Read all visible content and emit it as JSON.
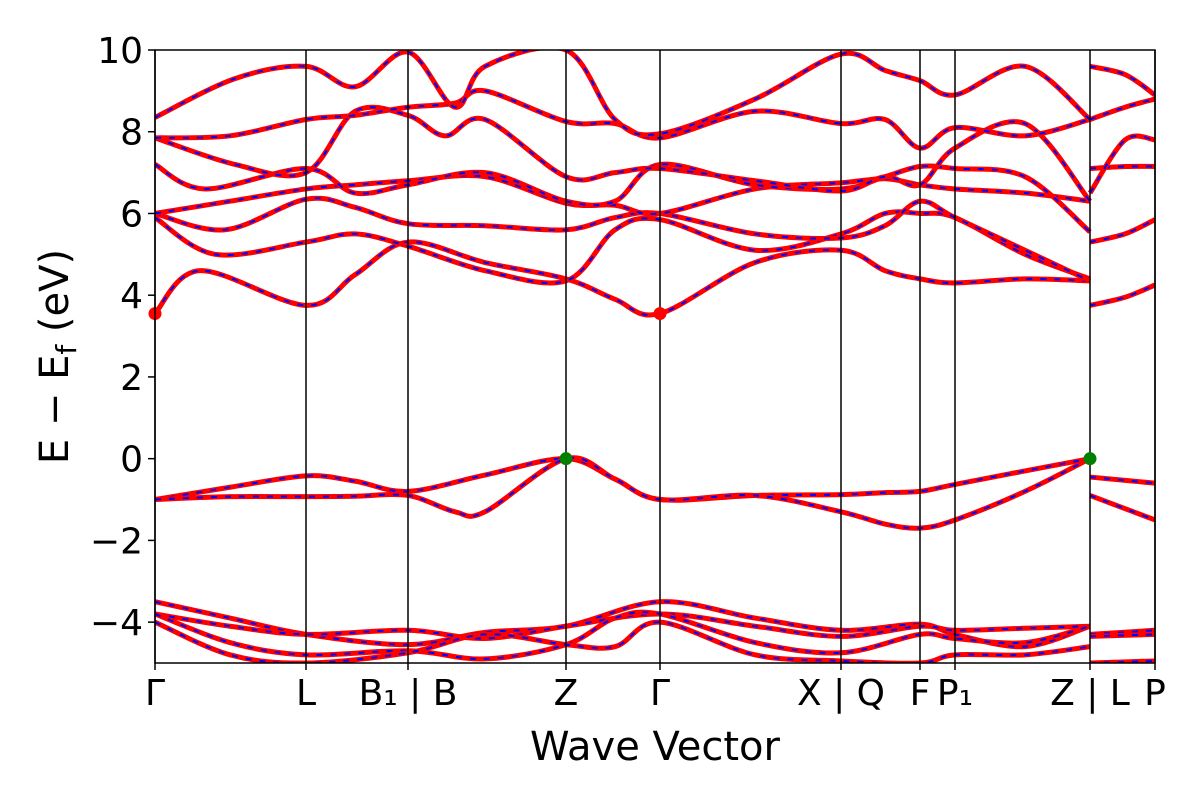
{
  "chart_data": {
    "type": "line",
    "title": "",
    "xlabel": "Wave Vector",
    "ylabel": "E − E_f (eV)",
    "ylabel_main": "E − E",
    "ylabel_sub": "f",
    "ylabel_unit": " (eV)",
    "ylim": [
      -5,
      10
    ],
    "yticks": [
      -4,
      -2,
      0,
      2,
      4,
      6,
      8,
      10
    ],
    "ytick_labels": [
      "−4",
      "−2",
      "0",
      "2",
      "4",
      "6",
      "8",
      "10"
    ],
    "xlim": [
      0,
      1
    ],
    "kpath_ticks": [
      {
        "x": 0.0,
        "label": "Γ"
      },
      {
        "x": 0.151,
        "label": "L"
      },
      {
        "x": 0.253,
        "label": "B₁ | B"
      },
      {
        "x": 0.411,
        "label": "Z"
      },
      {
        "x": 0.505,
        "label": "Γ"
      },
      {
        "x": 0.686,
        "label": "X | Q"
      },
      {
        "x": 0.765,
        "label": "F"
      },
      {
        "x": 0.8,
        "label": "P₁"
      },
      {
        "x": 0.935,
        "label": "Z | L"
      },
      {
        "x": 1.0,
        "label": "P"
      }
    ],
    "grid": false,
    "line_style": {
      "color": "#ff0000",
      "overlay_color": "#0000ff",
      "overlay_dash": "dashed"
    },
    "series": [
      {
        "x": [
          0,
          0.075,
          0.151,
          0.2,
          0.253,
          0.33,
          0.411,
          0.46,
          0.505,
          0.6,
          0.686,
          0.73,
          0.765,
          0.8,
          0.87,
          0.935
        ],
        "values": [
          -1.0,
          -0.7,
          -0.42,
          -0.55,
          -0.8,
          -0.4,
          0.0,
          -0.5,
          -1.0,
          -0.9,
          -0.88,
          -0.83,
          -0.8,
          -0.63,
          -0.3,
          0.0
        ]
      },
      {
        "x": [
          0,
          0.075,
          0.151,
          0.2,
          0.253,
          0.3,
          0.33,
          0.411,
          0.46,
          0.505,
          0.6,
          0.686,
          0.73,
          0.765,
          0.8,
          0.87,
          0.935
        ],
        "values": [
          -1.0,
          -0.93,
          -0.93,
          -0.92,
          -0.9,
          -1.3,
          -1.3,
          0.0,
          -0.5,
          -1.0,
          -0.9,
          -1.3,
          -1.6,
          -1.7,
          -1.5,
          -0.8,
          0.0
        ]
      },
      {
        "x": [
          0.935,
          1.0
        ],
        "values": [
          -0.45,
          -0.6
        ]
      },
      {
        "x": [
          0.935,
          1.0
        ],
        "values": [
          -0.9,
          -1.5
        ]
      },
      {
        "x": [
          0,
          0.045,
          0.151,
          0.2,
          0.253,
          0.33,
          0.411,
          0.46,
          0.505,
          0.6,
          0.686,
          0.73,
          0.765,
          0.8,
          0.87,
          0.935
        ],
        "values": [
          3.55,
          4.6,
          3.75,
          4.5,
          5.3,
          4.8,
          4.4,
          3.9,
          3.55,
          4.8,
          5.1,
          4.6,
          4.4,
          4.3,
          4.4,
          4.35
        ]
      },
      {
        "x": [
          0,
          0.06,
          0.151,
          0.2,
          0.253,
          0.33,
          0.411,
          0.46,
          0.505,
          0.6,
          0.686,
          0.73,
          0.765,
          0.8,
          0.87,
          0.935
        ],
        "values": [
          5.9,
          5.0,
          5.3,
          5.5,
          5.2,
          4.6,
          4.35,
          5.6,
          5.85,
          5.1,
          5.5,
          6.0,
          6.0,
          5.9,
          5.0,
          4.4
        ]
      },
      {
        "x": [
          0,
          0.07,
          0.151,
          0.2,
          0.253,
          0.33,
          0.411,
          0.46,
          0.505,
          0.6,
          0.686,
          0.73,
          0.765,
          0.8,
          0.87,
          0.935
        ],
        "values": [
          6.0,
          5.6,
          6.35,
          6.15,
          5.75,
          5.7,
          5.6,
          5.9,
          6.0,
          5.5,
          5.4,
          5.7,
          6.3,
          5.9,
          5.1,
          4.35
        ]
      },
      {
        "x": [
          0,
          0.075,
          0.151,
          0.2,
          0.253,
          0.33,
          0.411,
          0.46,
          0.505,
          0.6,
          0.686,
          0.73,
          0.765,
          0.8,
          0.87,
          0.935
        ],
        "values": [
          6.0,
          6.3,
          6.6,
          6.7,
          6.8,
          6.9,
          6.25,
          6.2,
          6.0,
          6.6,
          6.75,
          6.85,
          6.7,
          6.6,
          6.5,
          6.3
        ]
      },
      {
        "x": [
          0,
          0.05,
          0.151,
          0.2,
          0.253,
          0.33,
          0.411,
          0.46,
          0.505,
          0.6,
          0.686,
          0.73,
          0.765,
          0.8,
          0.87,
          0.935
        ],
        "values": [
          7.2,
          6.6,
          7.1,
          6.5,
          6.7,
          7.0,
          6.3,
          6.3,
          7.2,
          6.7,
          6.6,
          6.9,
          7.15,
          7.1,
          6.9,
          5.55
        ]
      },
      {
        "x": [
          0,
          0.08,
          0.151,
          0.2,
          0.253,
          0.29,
          0.33,
          0.411,
          0.46,
          0.505,
          0.6,
          0.686,
          0.73,
          0.765,
          0.8,
          0.87,
          0.935
        ],
        "values": [
          7.85,
          7.2,
          7.0,
          8.5,
          8.4,
          7.9,
          8.3,
          6.9,
          7.0,
          7.1,
          6.8,
          6.55,
          6.9,
          6.7,
          7.6,
          8.2,
          6.3
        ]
      },
      {
        "x": [
          0,
          0.075,
          0.151,
          0.2,
          0.253,
          0.3,
          0.33,
          0.411,
          0.46,
          0.505,
          0.6,
          0.686,
          0.73,
          0.765,
          0.8,
          0.87,
          0.935
        ],
        "values": [
          7.85,
          7.9,
          8.3,
          8.4,
          8.6,
          8.7,
          9.0,
          8.25,
          8.2,
          7.85,
          8.5,
          8.2,
          8.3,
          7.6,
          8.1,
          7.9,
          8.3
        ]
      },
      {
        "x": [
          0,
          0.08,
          0.151,
          0.2,
          0.253,
          0.3,
          0.33,
          0.411,
          0.46,
          0.505,
          0.6,
          0.686,
          0.73,
          0.765,
          0.8,
          0.87,
          0.935
        ],
        "values": [
          8.35,
          9.3,
          9.6,
          9.1,
          9.95,
          8.6,
          9.6,
          10.0,
          8.3,
          7.95,
          8.8,
          9.9,
          9.5,
          9.25,
          8.9,
          9.6,
          8.3
        ]
      },
      {
        "x": [
          0.935,
          0.97,
          1.0
        ],
        "values": [
          9.6,
          9.4,
          8.9
        ]
      },
      {
        "x": [
          0.935,
          0.97,
          1.0
        ],
        "values": [
          8.3,
          8.6,
          8.8
        ]
      },
      {
        "x": [
          0.935,
          0.97,
          1.0
        ],
        "values": [
          7.1,
          7.15,
          7.15
        ]
      },
      {
        "x": [
          0.935,
          0.97,
          1.0
        ],
        "values": [
          6.5,
          7.8,
          7.8
        ]
      },
      {
        "x": [
          0.935,
          0.97,
          1.0
        ],
        "values": [
          5.3,
          5.5,
          5.85
        ]
      },
      {
        "x": [
          0.935,
          0.97,
          1.0
        ],
        "values": [
          3.75,
          3.95,
          4.25
        ]
      },
      {
        "x": [
          0,
          0.075,
          0.151,
          0.253,
          0.33,
          0.411,
          0.505,
          0.6,
          0.686,
          0.765,
          0.8,
          0.87,
          0.935
        ],
        "values": [
          -3.5,
          -3.9,
          -4.3,
          -4.55,
          -4.25,
          -4.1,
          -3.5,
          -3.9,
          -4.2,
          -4.05,
          -4.3,
          -4.6,
          -4.1
        ]
      },
      {
        "x": [
          0,
          0.075,
          0.151,
          0.253,
          0.33,
          0.411,
          0.505,
          0.6,
          0.686,
          0.765,
          0.8,
          0.87,
          0.935
        ],
        "values": [
          -3.8,
          -4.1,
          -4.3,
          -4.2,
          -4.4,
          -4.1,
          -3.8,
          -4.1,
          -4.35,
          -4.1,
          -4.2,
          -4.15,
          -4.1
        ]
      },
      {
        "x": [
          0,
          0.075,
          0.151,
          0.253,
          0.33,
          0.411,
          0.46,
          0.505,
          0.6,
          0.686,
          0.765,
          0.8,
          0.87,
          0.935
        ],
        "values": [
          -3.8,
          -4.5,
          -4.8,
          -4.7,
          -4.9,
          -4.55,
          -3.9,
          -3.8,
          -4.5,
          -4.75,
          -4.3,
          -4.4,
          -4.5,
          -4.1
        ]
      },
      {
        "x": [
          0,
          0.075,
          0.151,
          0.253,
          0.33,
          0.411,
          0.46,
          0.505,
          0.6,
          0.686,
          0.765,
          0.8,
          0.87,
          0.935
        ],
        "values": [
          -4.0,
          -4.8,
          -5.0,
          -4.75,
          -4.3,
          -4.55,
          -4.6,
          -4.0,
          -4.8,
          -4.95,
          -5.0,
          -4.8,
          -4.8,
          -4.6
        ]
      },
      {
        "x": [
          0.935,
          1.0
        ],
        "values": [
          -4.3,
          -4.2
        ]
      },
      {
        "x": [
          0.935,
          1.0
        ],
        "values": [
          -4.35,
          -4.3
        ]
      },
      {
        "x": [
          0.935,
          1.0
        ],
        "values": [
          -5.0,
          -4.95
        ]
      }
    ],
    "markers": [
      {
        "x": 0.0,
        "y": 3.55,
        "color": "#ff0000"
      },
      {
        "x": 0.505,
        "y": 3.55,
        "color": "#ff0000"
      },
      {
        "x": 0.411,
        "y": 0.0,
        "color": "#008000"
      },
      {
        "x": 0.935,
        "y": 0.0,
        "color": "#008000"
      }
    ]
  }
}
